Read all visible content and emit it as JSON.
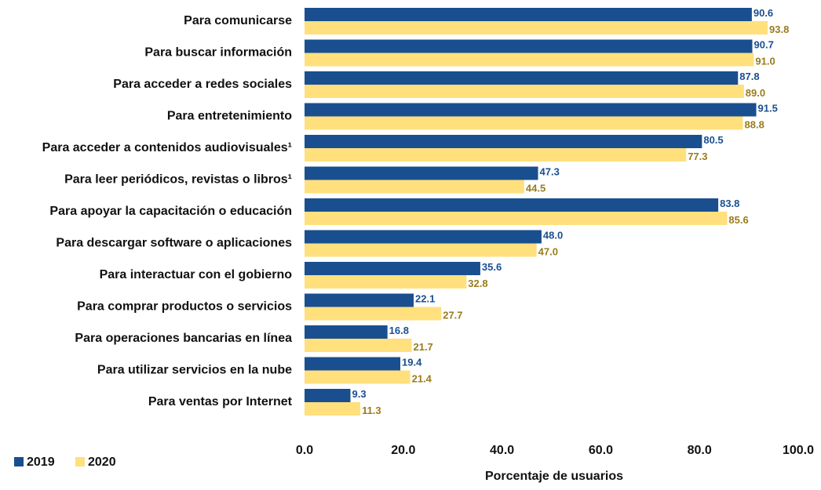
{
  "chart_data": {
    "type": "hbar",
    "categories": [
      "Para comunicarse",
      "Para buscar información",
      "Para acceder a redes sociales",
      "Para entretenimiento",
      "Para acceder a contenidos audiovisuales¹",
      "Para leer periódicos, revistas o libros¹",
      "Para apoyar la capacitación o educación",
      "Para descargar software o aplicaciones",
      "Para interactuar con el gobierno",
      "Para comprar productos o servicios",
      "Para operaciones bancarias en línea",
      "Para utilizar servicios en la nube",
      "Para ventas por Internet"
    ],
    "series": [
      {
        "name": "2019",
        "color": "#1a4f8f",
        "label_color": "#1a4f8f",
        "values": [
          90.6,
          90.7,
          87.8,
          91.5,
          80.5,
          47.3,
          83.8,
          48.0,
          35.6,
          22.1,
          16.8,
          19.4,
          9.3
        ],
        "value_labels": [
          "90.6",
          "90.7",
          "87.8",
          "91.5",
          "80.5",
          "47.3",
          "83.8",
          "48.0",
          "35.6",
          "22.1",
          "16.8",
          "19.4",
          "9.3"
        ]
      },
      {
        "name": "2020",
        "color": "#ffe07c",
        "label_color": "#9a7b1c",
        "values": [
          93.8,
          91.0,
          89.0,
          88.8,
          77.3,
          44.5,
          85.6,
          47.0,
          32.8,
          27.7,
          21.7,
          21.4,
          11.3
        ],
        "value_labels": [
          "93.8",
          "91.0",
          "89.0",
          "88.8",
          "77.3",
          "44.5",
          "85.6",
          "47.0",
          "32.8",
          "27.7",
          "21.7",
          "21.4",
          "11.3"
        ]
      }
    ],
    "xlabel": "Porcentaje de usuarios",
    "xlim": [
      0,
      100
    ],
    "xticks": [
      {
        "value": 0,
        "label": "0.0"
      },
      {
        "value": 20,
        "label": "20.0"
      },
      {
        "value": 40,
        "label": "40.0"
      },
      {
        "value": 60,
        "label": "60.0"
      },
      {
        "value": 80,
        "label": "80.0"
      },
      {
        "value": 100,
        "label": "100.0"
      }
    ],
    "legend": "bottom-left"
  }
}
